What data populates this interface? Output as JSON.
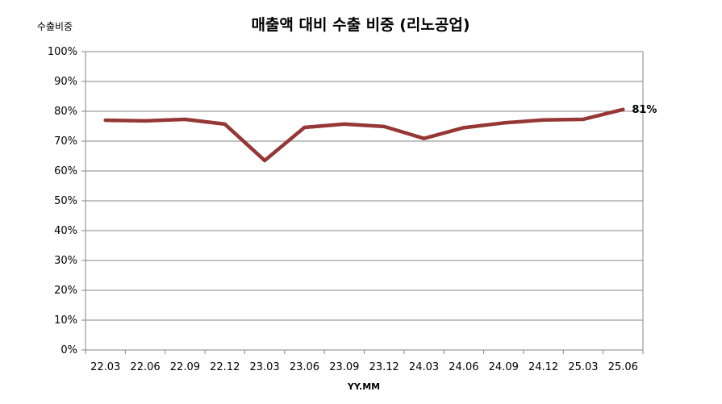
{
  "chart_data": {
    "type": "line",
    "title": "매출액 대비 수출 비중 (리노공업)",
    "ylabel": "수출비중",
    "xlabel": "YY.MM",
    "categories": [
      "22.03",
      "22.06",
      "22.09",
      "22.12",
      "23.03",
      "23.06",
      "23.09",
      "23.12",
      "24.03",
      "24.06",
      "24.09",
      "24.12",
      "25.03",
      "25.06"
    ],
    "series": [
      {
        "values": [
          77,
          76.8,
          77.3,
          75.7,
          63.5,
          74.6,
          75.7,
          74.9,
          70.9,
          74.5,
          76.1,
          77.1,
          77.3,
          80.6
        ]
      }
    ],
    "ylim": [
      0,
      100
    ],
    "yticks": [
      "0%",
      "10%",
      "20%",
      "30%",
      "40%",
      "50%",
      "60%",
      "70%",
      "80%",
      "90%",
      "100%"
    ],
    "grid": true,
    "line_color": "#953735",
    "data_labels": [
      {
        "index": 13,
        "text": "81%"
      }
    ]
  }
}
